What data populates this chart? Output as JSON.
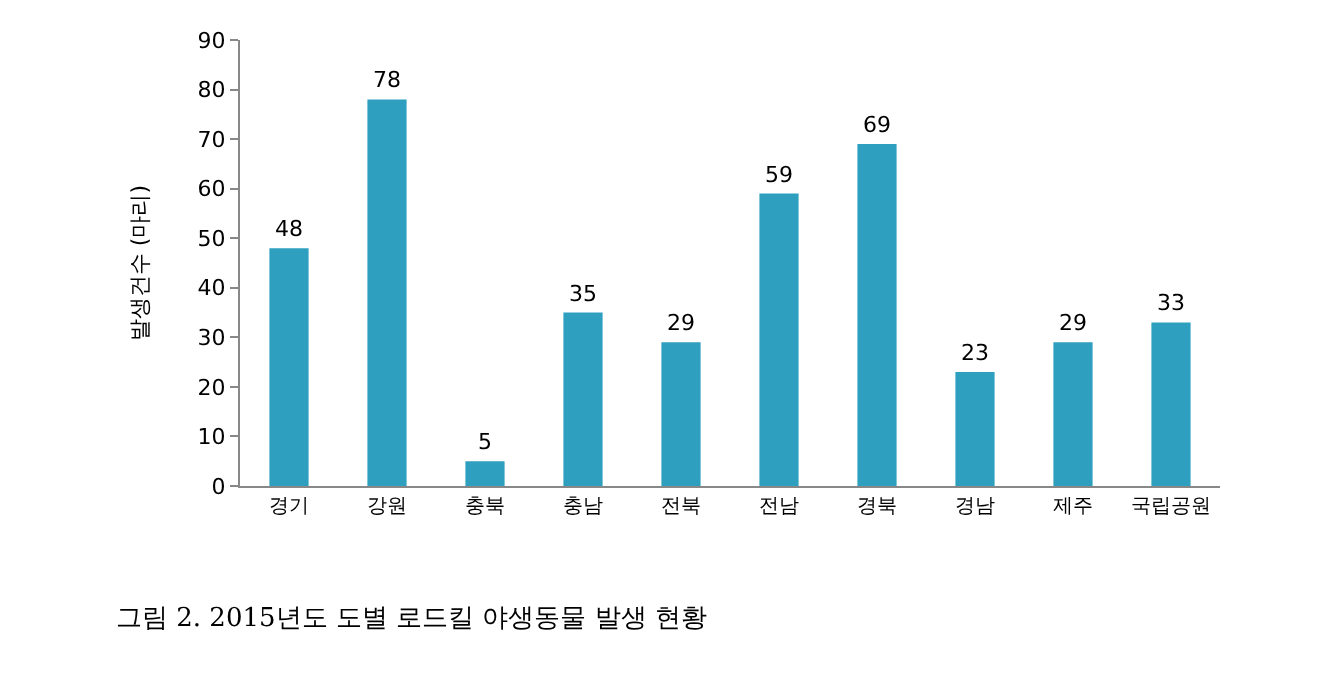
{
  "chart_data": {
    "type": "bar",
    "ylabel": "발생건수 (마리)",
    "categories": [
      "경기",
      "강원",
      "충북",
      "충남",
      "전북",
      "전남",
      "경북",
      "경남",
      "제주",
      "국립공원"
    ],
    "values": [
      48,
      78,
      5,
      35,
      29,
      59,
      69,
      23,
      29,
      33
    ],
    "color": "#2e9fbf",
    "ylim": [
      0,
      90
    ],
    "yticks": [
      0,
      10,
      20,
      30,
      40,
      50,
      60,
      70,
      80,
      90
    ],
    "data_labels": true,
    "annotations": [
      "그림 2. 2015년도 도별 로드킬 야생동물 발생 현황"
    ]
  }
}
